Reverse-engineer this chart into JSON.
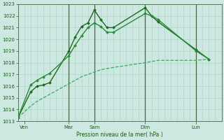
{
  "xlabel": "Pression niveau de la mer( hPa )",
  "ylim": [
    1013,
    1023
  ],
  "yticks": [
    1013,
    1014,
    1015,
    1016,
    1017,
    1018,
    1019,
    1020,
    1021,
    1022,
    1023
  ],
  "xlim": [
    0,
    32
  ],
  "bg_color": "#cce8e0",
  "grid_color_minor": "#aad0c8",
  "grid_color_major": "#88b8b0",
  "vline_color": "#446644",
  "vlines_x": [
    8,
    12,
    20,
    28
  ],
  "day_ticks_x": [
    1,
    8,
    12,
    20,
    28
  ],
  "day_labels": [
    "Ven",
    "Mar",
    "Sam",
    "Dim",
    "Lun"
  ],
  "line1": {
    "x": [
      0,
      2,
      3,
      4,
      5,
      8,
      9,
      10,
      11,
      12,
      13,
      14,
      15,
      20,
      21,
      22,
      28,
      30
    ],
    "y": [
      1013.3,
      1015.5,
      1016.0,
      1016.1,
      1016.3,
      1019.0,
      1020.2,
      1021.1,
      1021.4,
      1022.5,
      1021.7,
      1021.0,
      1021.0,
      1022.7,
      1022.0,
      1021.5,
      1019.1,
      1018.3
    ],
    "color": "#1a6a1a",
    "lw": 1.0,
    "marker": "D",
    "ms": 2.0
  },
  "line2": {
    "x": [
      0,
      2,
      3,
      4,
      5,
      8,
      9,
      10,
      11,
      12,
      13,
      14,
      15,
      20,
      21,
      22,
      28,
      30
    ],
    "y": [
      1013.3,
      1016.1,
      1016.5,
      1016.8,
      1017.1,
      1018.6,
      1019.5,
      1020.3,
      1021.0,
      1021.4,
      1021.1,
      1020.6,
      1020.6,
      1022.2,
      1022.0,
      1021.7,
      1019.0,
      1018.3
    ],
    "color": "#2a8a3a",
    "lw": 1.0,
    "marker": "D",
    "ms": 2.0
  },
  "line3": {
    "x": [
      0,
      2,
      3,
      4,
      5,
      8,
      9,
      10,
      11,
      12,
      13,
      14,
      15,
      20,
      21,
      22,
      28,
      30
    ],
    "y": [
      1013.3,
      1014.3,
      1014.7,
      1015.0,
      1015.3,
      1016.2,
      1016.5,
      1016.8,
      1017.0,
      1017.2,
      1017.4,
      1017.5,
      1017.6,
      1018.0,
      1018.1,
      1018.2,
      1018.2,
      1018.3
    ],
    "color": "#3aaa5a",
    "lw": 0.9,
    "linestyle": "--"
  }
}
